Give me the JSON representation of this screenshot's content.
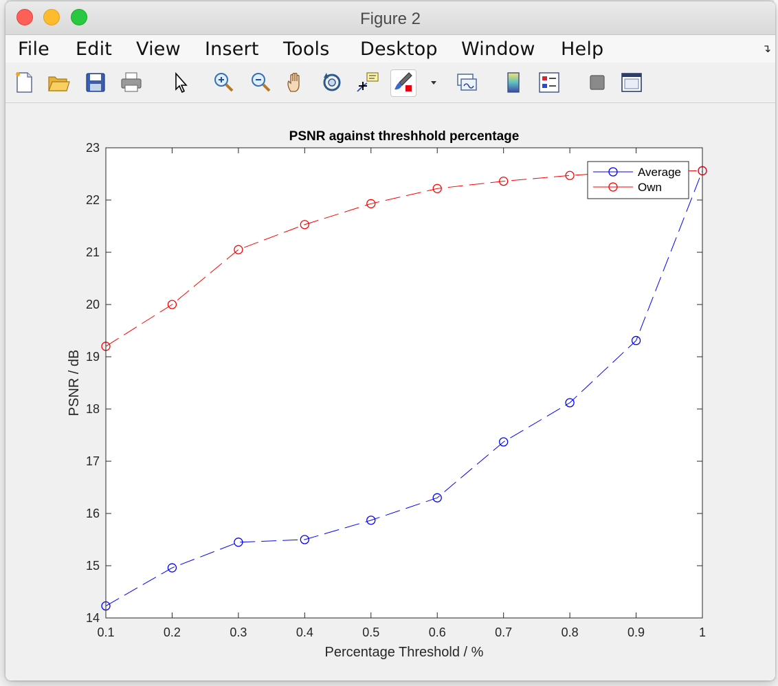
{
  "window": {
    "title": "Figure 2"
  },
  "menubar": {
    "items": [
      "File",
      "Edit",
      "View",
      "Insert",
      "Tools",
      "Desktop",
      "Window",
      "Help"
    ]
  },
  "toolbar": {
    "icons": [
      "new-figure-icon",
      "open-file-icon",
      "save-icon",
      "print-icon",
      "pointer-icon",
      "zoom-in-icon",
      "zoom-out-icon",
      "pan-hand-icon",
      "rotate-3d-icon",
      "data-cursor-icon",
      "brush-icon",
      "brush-dropdown-icon",
      "link-plot-icon",
      "colorbar-icon",
      "legend-icon",
      "hide-plot-tools-icon",
      "show-plot-tools-icon"
    ]
  },
  "colors": {
    "average": "#0000ff",
    "own": "#ff0000"
  },
  "chart_data": {
    "type": "line",
    "title": "PSNR against threshhold percentage",
    "xlabel": "Percentage Threshold / %",
    "ylabel": "PSNR / dB",
    "xlim": [
      0.1,
      1
    ],
    "ylim": [
      14,
      23
    ],
    "xticks": [
      "0.1",
      "0.2",
      "0.3",
      "0.4",
      "0.5",
      "0.6",
      "0.7",
      "0.8",
      "0.9",
      "1"
    ],
    "yticks": [
      "14",
      "15",
      "16",
      "17",
      "18",
      "19",
      "20",
      "21",
      "22",
      "23"
    ],
    "x": [
      0.1,
      0.2,
      0.3,
      0.4,
      0.5,
      0.6,
      0.7,
      0.8,
      0.9,
      1.0
    ],
    "series": [
      {
        "name": "Average",
        "values": [
          14.23,
          14.96,
          15.45,
          15.5,
          15.87,
          16.3,
          17.37,
          18.12,
          19.31,
          22.56
        ]
      },
      {
        "name": "Own",
        "values": [
          19.2,
          20.0,
          21.05,
          21.53,
          21.93,
          22.22,
          22.36,
          22.47,
          22.55,
          22.56
        ]
      }
    ],
    "grid": false,
    "legend": "top-right",
    "line_style": "dashed",
    "marker": "circle"
  }
}
